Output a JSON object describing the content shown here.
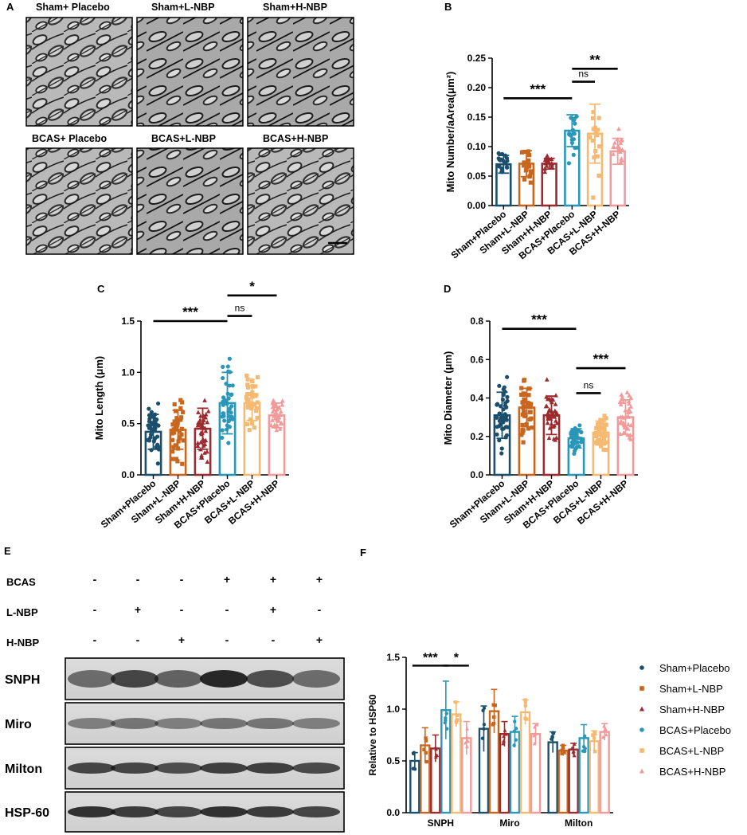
{
  "panels": {
    "A": "A",
    "B": "B",
    "C": "C",
    "D": "D",
    "E": "E",
    "F": "F"
  },
  "em_images": {
    "labels": [
      "Sham+ Placebo",
      "Sham+L-NBP",
      "Sham+H-NBP",
      "BCAS+ Placebo",
      "BCAS+L-NBP",
      "BCAS+H-NBP"
    ]
  },
  "western": {
    "row_labels": [
      "BCAS",
      "L-NBP",
      "H-NBP"
    ],
    "signs": [
      [
        "-",
        "-",
        "-",
        "+",
        "+",
        "+"
      ],
      [
        "-",
        "+",
        "-",
        "-",
        "+",
        "-"
      ],
      [
        "-",
        "-",
        "+",
        "-",
        "-",
        "+"
      ]
    ],
    "blots": [
      "SNPH",
      "Miro",
      "Milton",
      "HSP-60"
    ]
  },
  "colors": {
    "Sham+Placebo": "#1b4f6b",
    "Sham+L-NBP": "#c8661e",
    "Sham+H-NBP": "#9c2a2e",
    "BCAS+Placebo": "#2a97b8",
    "BCAS+L-NBP": "#f5b971",
    "BCAS+H-NBP": "#f29a9a"
  },
  "chart_data": [
    {
      "panel": "B",
      "type": "bar",
      "categories": [
        "Sham+Placebo",
        "Sham+L-NBP",
        "Sham+H-NBP",
        "BCAS+Placebo",
        "BCAS+L-NBP",
        "BCAS+H-NBP"
      ],
      "values": [
        0.07,
        0.071,
        0.071,
        0.127,
        0.122,
        0.092
      ],
      "errors": [
        0.015,
        0.022,
        0.009,
        0.027,
        0.05,
        0.022
      ],
      "ylabel": "Mito Number/aArea(μm²)",
      "ylim": [
        0,
        0.25
      ],
      "yticks": [
        "0.00",
        "0.05",
        "0.10",
        "0.15",
        "0.20",
        "0.25"
      ],
      "yticks_values": [
        0,
        0.05,
        0.1,
        0.15,
        0.2,
        0.25
      ],
      "sig": [
        {
          "from": 0,
          "to": 3,
          "label": "***",
          "y": 0.182
        },
        {
          "from": 3,
          "to": 4,
          "label": "ns",
          "y": 0.21
        },
        {
          "from": 3,
          "to": 5,
          "label": "**",
          "y": 0.232
        }
      ]
    },
    {
      "panel": "C",
      "type": "bar",
      "categories": [
        "Sham+Placebo",
        "Sham+L-NBP",
        "Sham+H-NBP",
        "BCAS+Placebo",
        "BCAS+L-NBP",
        "BCAS+H-NBP"
      ],
      "values": [
        0.42,
        0.44,
        0.45,
        0.7,
        0.7,
        0.58
      ],
      "errors": [
        0.17,
        0.19,
        0.2,
        0.3,
        0.17,
        0.12
      ],
      "ylabel": "Mito Length (μm)",
      "ylim": [
        0,
        1.5
      ],
      "yticks": [
        "0.0",
        "0.5",
        "1.0",
        "1.5"
      ],
      "yticks_values": [
        0,
        0.5,
        1.0,
        1.5
      ],
      "sig": [
        {
          "from": 0,
          "to": 3,
          "label": "***",
          "y": 1.5
        },
        {
          "from": 3,
          "to": 4,
          "label": "ns",
          "y": 1.55
        },
        {
          "from": 3,
          "to": 5,
          "label": "*",
          "y": 1.75
        }
      ]
    },
    {
      "panel": "D",
      "type": "bar",
      "categories": [
        "Sham+Placebo",
        "Sham+L-NBP",
        "Sham+H-NBP",
        "BCAS+Placebo",
        "BCAS+L-NBP",
        "BCAS+H-NBP"
      ],
      "values": [
        0.31,
        0.35,
        0.31,
        0.19,
        0.22,
        0.3
      ],
      "errors": [
        0.12,
        0.1,
        0.1,
        0.05,
        0.06,
        0.09
      ],
      "ylabel": "Mito Diameter (μm)",
      "ylim": [
        0,
        0.8
      ],
      "yticks": [
        "0.0",
        "0.2",
        "0.4",
        "0.6",
        "0.8"
      ],
      "yticks_values": [
        0,
        0.2,
        0.4,
        0.6,
        0.8
      ],
      "sig": [
        {
          "from": 0,
          "to": 3,
          "label": "***",
          "y": 0.76
        },
        {
          "from": 3,
          "to": 4,
          "label": "ns",
          "y": 0.425
        },
        {
          "from": 3,
          "to": 5,
          "label": "***",
          "y": 0.555
        }
      ]
    },
    {
      "panel": "F",
      "type": "bar",
      "categories": [
        "SNPH",
        "Miro",
        "Milton"
      ],
      "series": [
        {
          "name": "Sham+Placebo",
          "values": [
            0.5,
            0.81,
            0.68
          ],
          "errors": [
            0.08,
            0.22,
            0.1
          ]
        },
        {
          "name": "Sham+L-NBP",
          "values": [
            0.65,
            0.98,
            0.6
          ],
          "errors": [
            0.17,
            0.21,
            0.05
          ]
        },
        {
          "name": "Sham+H-NBP",
          "values": [
            0.62,
            0.76,
            0.61
          ],
          "errors": [
            0.13,
            0.12,
            0.06
          ]
        },
        {
          "name": "BCAS+Placebo",
          "values": [
            0.99,
            0.78,
            0.72
          ],
          "errors": [
            0.28,
            0.15,
            0.13
          ]
        },
        {
          "name": "BCAS+L-NBP",
          "values": [
            0.95,
            0.97,
            0.69
          ],
          "errors": [
            0.12,
            0.12,
            0.1
          ]
        },
        {
          "name": "BCAS+H-NBP",
          "values": [
            0.72,
            0.76,
            0.78
          ],
          "errors": [
            0.16,
            0.1,
            0.08
          ]
        }
      ],
      "ylabel": "Relative to HSP60",
      "ylim": [
        0,
        1.5
      ],
      "yticks": [
        "0.0",
        "0.5",
        "1.0",
        "1.5"
      ],
      "yticks_values": [
        0,
        0.5,
        1.0,
        1.5
      ],
      "legend": "right",
      "sig": [
        {
          "group": 0,
          "from": 0,
          "to": 3,
          "label": "***",
          "y": 1.42
        },
        {
          "group": 0,
          "from": 3,
          "to": 5,
          "label": "*",
          "y": 1.42
        }
      ]
    }
  ]
}
